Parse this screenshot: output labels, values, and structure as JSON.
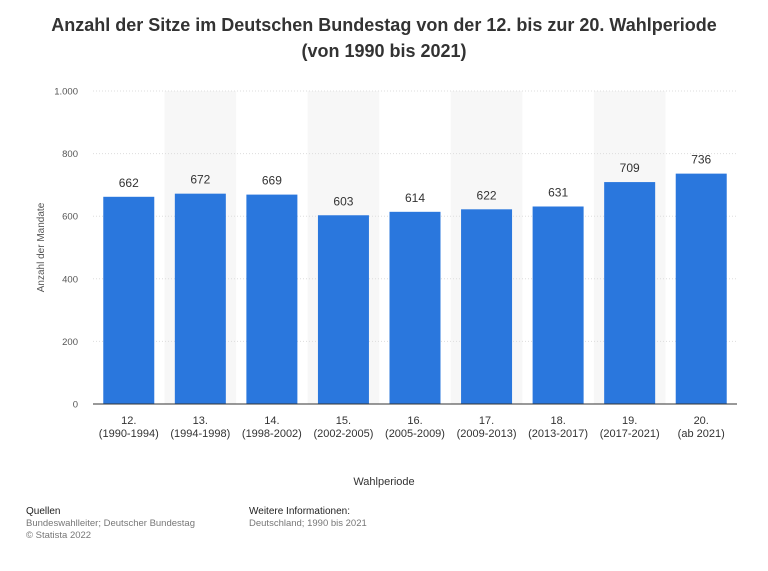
{
  "title": "Anzahl der Sitze im Deutschen Bundestag von der 12. bis zur 20. Wahlperiode (von 1990 bis 2021)",
  "colors": {
    "bar": "#2a77dd",
    "band": "#f7f7f7",
    "grid": "#dddddd",
    "axis": "#333333",
    "tick_text": "#555555",
    "label_text": "#333333"
  },
  "chart_data": {
    "type": "bar",
    "title": "Anzahl der Sitze im Deutschen Bundestag von der 12. bis zur 20. Wahlperiode (von 1990 bis 2021)",
    "xlabel": "Wahlperiode",
    "ylabel": "Anzahl der Mandate",
    "ylim": [
      0,
      1000
    ],
    "yticks": [
      0,
      200,
      400,
      600,
      800,
      1000
    ],
    "ytick_labels": [
      "0",
      "200",
      "400",
      "600",
      "800",
      "1.000"
    ],
    "grid": true,
    "categories": [
      [
        "12.",
        "(1990-1994)"
      ],
      [
        "13.",
        "(1994-1998)"
      ],
      [
        "14.",
        "(1998-2002)"
      ],
      [
        "15.",
        "(2002-2005)"
      ],
      [
        "16.",
        "(2005-2009)"
      ],
      [
        "17.",
        "(2009-2013)"
      ],
      [
        "18.",
        "(2013-2017)"
      ],
      [
        "19.",
        "(2017-2021)"
      ],
      [
        "20.",
        "(ab 2021)"
      ]
    ],
    "values": [
      662,
      672,
      669,
      603,
      614,
      622,
      631,
      709,
      736
    ]
  },
  "footer": {
    "sources_heading": "Quellen",
    "sources_lines": [
      "Bundeswahlleiter; Deutscher Bundestag",
      "© Statista 2022"
    ],
    "info_heading": "Weitere Informationen:",
    "info_lines": [
      "Deutschland; 1990 bis 2021"
    ]
  }
}
